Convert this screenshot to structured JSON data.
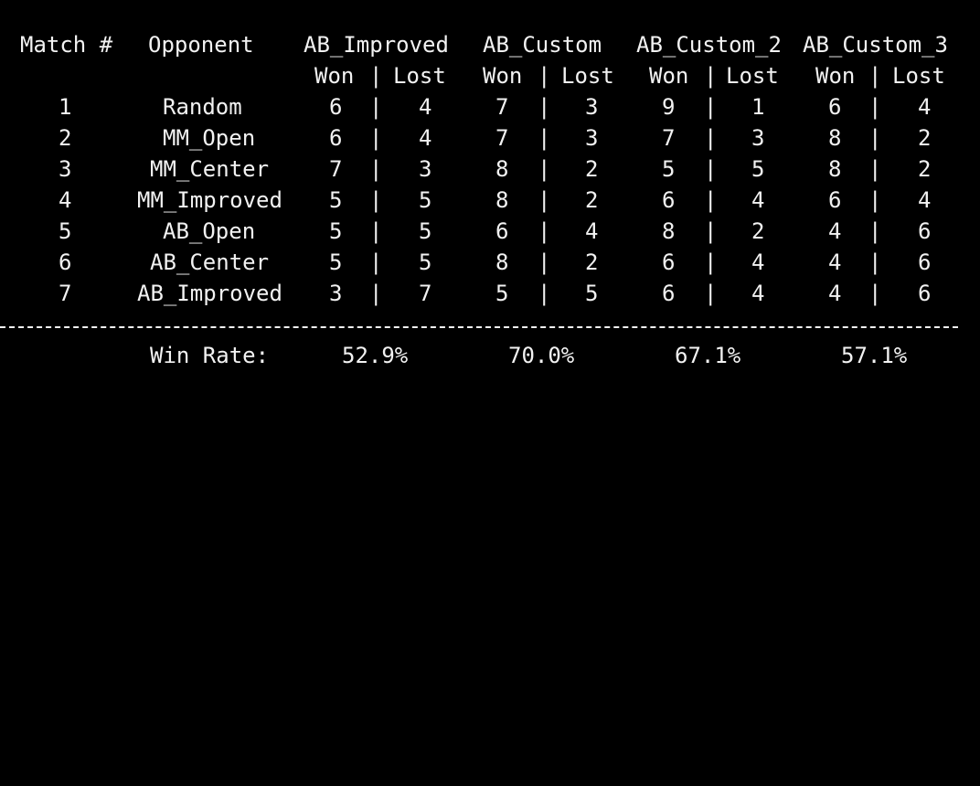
{
  "header": {
    "col_match": "Match #",
    "col_opponent": "Opponent",
    "agents": [
      "AB_Improved",
      "AB_Custom",
      "AB_Custom_2",
      "AB_Custom_3"
    ],
    "won_label": "Won",
    "sep": "|",
    "lost_label": "Lost"
  },
  "rows": [
    {
      "match": "1",
      "opponent": "Random",
      "results": [
        [
          "6",
          "4"
        ],
        [
          "7",
          "3"
        ],
        [
          "9",
          "1"
        ],
        [
          "6",
          "4"
        ]
      ]
    },
    {
      "match": "2",
      "opponent": "MM_Open",
      "results": [
        [
          "6",
          "4"
        ],
        [
          "7",
          "3"
        ],
        [
          "7",
          "3"
        ],
        [
          "8",
          "2"
        ]
      ]
    },
    {
      "match": "3",
      "opponent": "MM_Center",
      "results": [
        [
          "7",
          "3"
        ],
        [
          "8",
          "2"
        ],
        [
          "5",
          "5"
        ],
        [
          "8",
          "2"
        ]
      ]
    },
    {
      "match": "4",
      "opponent": "MM_Improved",
      "results": [
        [
          "5",
          "5"
        ],
        [
          "8",
          "2"
        ],
        [
          "6",
          "4"
        ],
        [
          "6",
          "4"
        ]
      ]
    },
    {
      "match": "5",
      "opponent": "AB_Open",
      "results": [
        [
          "5",
          "5"
        ],
        [
          "6",
          "4"
        ],
        [
          "8",
          "2"
        ],
        [
          "4",
          "6"
        ]
      ]
    },
    {
      "match": "6",
      "opponent": "AB_Center",
      "results": [
        [
          "5",
          "5"
        ],
        [
          "8",
          "2"
        ],
        [
          "6",
          "4"
        ],
        [
          "4",
          "6"
        ]
      ]
    },
    {
      "match": "7",
      "opponent": "AB_Improved",
      "results": [
        [
          "3",
          "7"
        ],
        [
          "5",
          "5"
        ],
        [
          "6",
          "4"
        ],
        [
          "4",
          "6"
        ]
      ]
    }
  ],
  "footer": {
    "win_rate_label": "Win Rate:",
    "win_rates": [
      "52.9%",
      "70.0%",
      "67.1%",
      "57.1%"
    ]
  },
  "colors": {
    "background": "#000000",
    "text": "#f2f2f2"
  }
}
